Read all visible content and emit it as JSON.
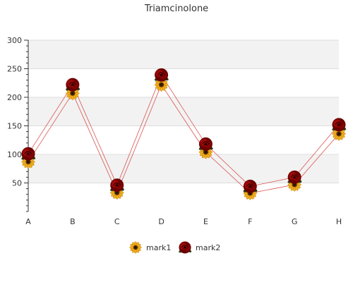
{
  "chart_data": {
    "type": "line",
    "title": "Triamcinolone",
    "xlabel": "",
    "ylabel": "",
    "categories": [
      "A",
      "B",
      "C",
      "D",
      "E",
      "F",
      "G",
      "H"
    ],
    "ylim": [
      0,
      300
    ],
    "yticks": [
      50,
      100,
      150,
      200,
      250,
      300
    ],
    "grid": true,
    "band_colors": [
      "#f2f2f2",
      "#ffffff"
    ],
    "line_color": "#d9534f",
    "legend_position": "bottom",
    "series": [
      {
        "name": "mark1",
        "marker": "sunflower-icon",
        "color": "#f0a500",
        "values": [
          87,
          207,
          33,
          222,
          104,
          32,
          47,
          136
        ]
      },
      {
        "name": "mark2",
        "marker": "rose-icon",
        "color": "#8b0000",
        "values": [
          101,
          222,
          46,
          239,
          118,
          44,
          60,
          152
        ]
      }
    ]
  }
}
